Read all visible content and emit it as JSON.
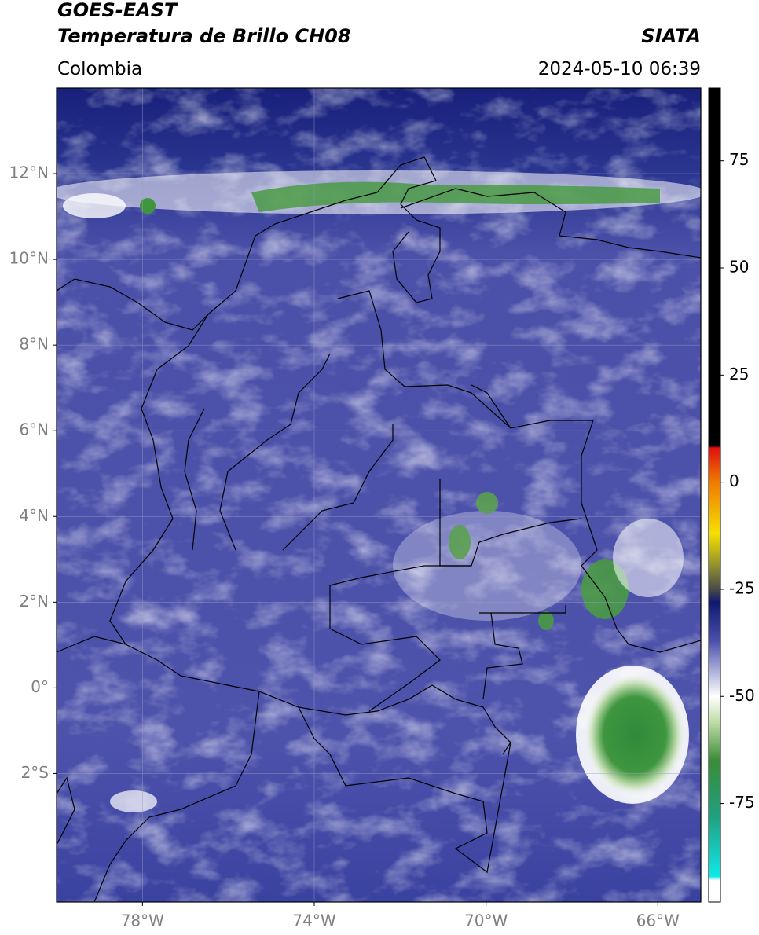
{
  "header": {
    "satellite": "GOES-EAST",
    "product": "Temperatura de Brillo CH08",
    "source": "SIATA",
    "region": "Colombia",
    "datetime": "2024-05-10 06:39"
  },
  "map": {
    "xlim": [
      -80,
      -65
    ],
    "ylim": [
      -5,
      14
    ],
    "xticks": [
      {
        "value": -78,
        "label": "78°W"
      },
      {
        "value": -74,
        "label": "74°W"
      },
      {
        "value": -70,
        "label": "70°W"
      },
      {
        "value": -66,
        "label": "66°W"
      }
    ],
    "yticks": [
      {
        "value": 12,
        "label": "12°N"
      },
      {
        "value": 10,
        "label": "10°N"
      },
      {
        "value": 8,
        "label": "8°N"
      },
      {
        "value": 6,
        "label": "6°N"
      },
      {
        "value": 4,
        "label": "4°N"
      },
      {
        "value": 2,
        "label": "2°N"
      },
      {
        "value": 0,
        "label": "0°"
      },
      {
        "value": -2,
        "label": "2°S"
      }
    ],
    "grid": true
  },
  "colorbar": {
    "clim": [
      -98,
      92
    ],
    "ticks": [
      75,
      50,
      25,
      0,
      -25,
      -50,
      -75
    ],
    "colormap": [
      {
        "value": 92,
        "color": "#000000"
      },
      {
        "value": 8.5,
        "color": "#000000"
      },
      {
        "value": 8,
        "color": "#e01010"
      },
      {
        "value": 0,
        "color": "#f07a00"
      },
      {
        "value": -12,
        "color": "#f5e000"
      },
      {
        "value": -20,
        "color": "#8a8a30"
      },
      {
        "value": -25,
        "color": "#4a4a4a"
      },
      {
        "value": -28,
        "color": "#10186e"
      },
      {
        "value": -37,
        "color": "#4a50aa"
      },
      {
        "value": -45,
        "color": "#b8bce0"
      },
      {
        "value": -50,
        "color": "#ffffff"
      },
      {
        "value": -56,
        "color": "#c0dca8"
      },
      {
        "value": -65,
        "color": "#3a8c38"
      },
      {
        "value": -78,
        "color": "#20a080"
      },
      {
        "value": -92,
        "color": "#10e8e8"
      },
      {
        "value": -93,
        "color": "#ffffff"
      },
      {
        "value": -98,
        "color": "#ffffff"
      }
    ]
  }
}
